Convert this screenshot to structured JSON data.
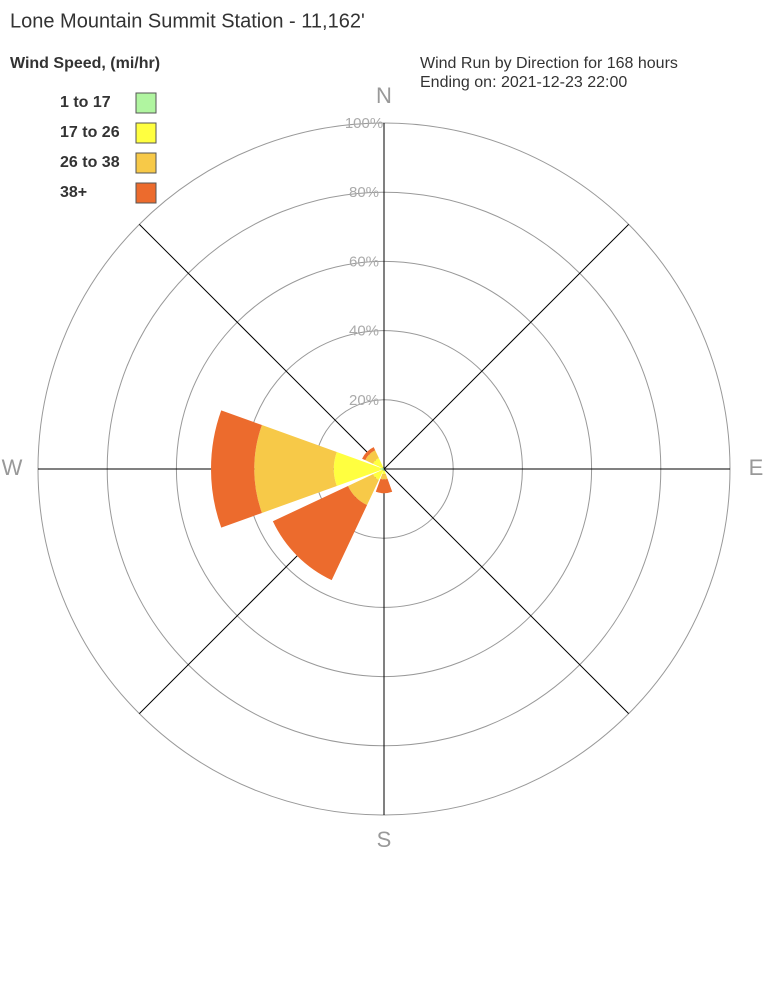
{
  "chart_data": {
    "type": "windrose",
    "title": "Lone Mountain Summit Station - 11,162'",
    "legend_title": "Wind Speed, (mi/hr)",
    "subtitle": [
      "Wind Run by Direction for 168 hours",
      "Ending on: 2021-12-23 22:00"
    ],
    "categories": [
      "N",
      null,
      "E",
      null,
      "S",
      null,
      "W",
      null
    ],
    "series": [
      {
        "name": "1 to 17",
        "color": "#b0f5a0",
        "values": [
          0,
          0,
          0,
          0,
          0.5,
          0.5,
          1,
          0.5
        ]
      },
      {
        "name": "17 to 26",
        "color": "#ffff40",
        "values": [
          0,
          0,
          0,
          0,
          1,
          3,
          13.5,
          3
        ]
      },
      {
        "name": "26 to 38",
        "color": "#f7c948",
        "values": [
          0,
          0,
          0,
          0,
          1.5,
          8,
          23,
          2.5
        ]
      },
      {
        "name": "38+",
        "color": "#ec6b2d",
        "values": [
          0,
          0,
          0,
          0,
          4,
          24,
          12.5,
          1
        ]
      }
    ],
    "rlim": [
      0,
      100
    ],
    "rticks": [
      {
        "value": 20,
        "label": "20%"
      },
      {
        "value": 40,
        "label": "40%"
      },
      {
        "value": 60,
        "label": "60%"
      },
      {
        "value": 80,
        "label": "80%"
      },
      {
        "value": 100,
        "label": "100%"
      }
    ]
  }
}
